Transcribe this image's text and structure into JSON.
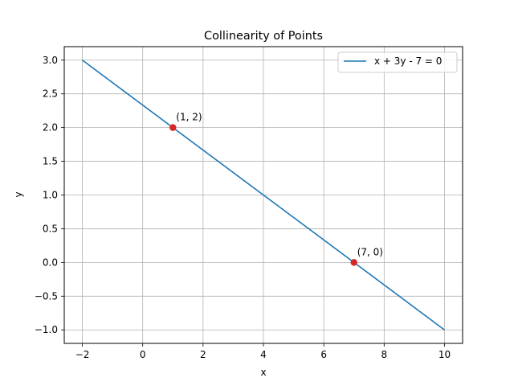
{
  "chart_data": {
    "type": "line",
    "title": "Collinearity of Points",
    "xlabel": "x",
    "ylabel": "y",
    "xlim": [
      -2.6,
      10.6
    ],
    "ylim": [
      -1.2,
      3.2
    ],
    "x_ticks": [
      -2,
      0,
      2,
      4,
      6,
      8,
      10
    ],
    "x_tick_labels": [
      "−2",
      "0",
      "2",
      "4",
      "6",
      "8",
      "10"
    ],
    "y_ticks": [
      -1.0,
      -0.5,
      0.0,
      0.5,
      1.0,
      1.5,
      2.0,
      2.5,
      3.0
    ],
    "y_tick_labels": [
      "−1.0",
      "−0.5",
      "0.0",
      "0.5",
      "1.0",
      "1.5",
      "2.0",
      "2.5",
      "3.0"
    ],
    "grid": true,
    "legend_position": "top-right",
    "series": [
      {
        "name": "x + 3y - 7 = 0",
        "color": "#1f77b4",
        "x": [
          -2,
          10
        ],
        "y": [
          3,
          -1
        ]
      }
    ],
    "points": [
      {
        "x": 1,
        "y": 2,
        "label": "(1, 2)",
        "color": "#d62728"
      },
      {
        "x": 7,
        "y": 0,
        "label": "(7, 0)",
        "color": "#d62728"
      }
    ]
  }
}
